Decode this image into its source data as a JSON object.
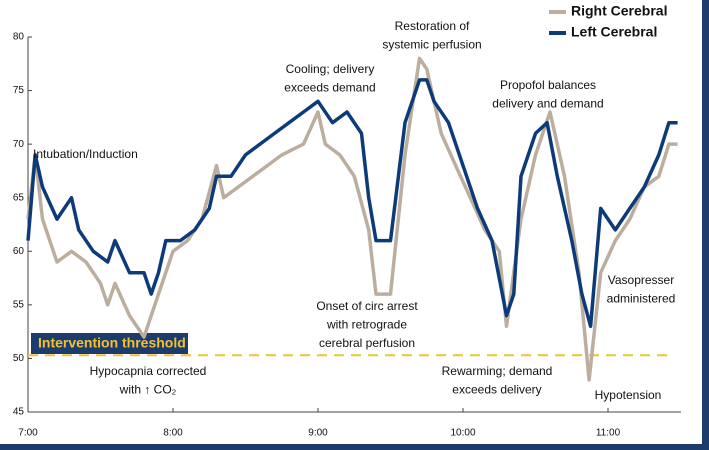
{
  "chart_data": {
    "type": "line",
    "xlim": [
      7,
      11.5
    ],
    "xticks": [
      {
        "value": 7,
        "label": "7:00"
      },
      {
        "value": 8,
        "label": "8:00"
      },
      {
        "value": 9,
        "label": "9:00"
      },
      {
        "value": 10,
        "label": "10:00"
      },
      {
        "value": 11,
        "label": "11:00"
      }
    ],
    "ylim": [
      45,
      80
    ],
    "yticks": [
      45,
      50,
      55,
      60,
      65,
      70,
      75,
      80
    ],
    "legend": "top-right",
    "threshold": {
      "label": "Intervention threshold",
      "value": 50.3,
      "color": "#f2c12e"
    },
    "series": [
      {
        "name": "Right Cerebral",
        "color": "#bcae9f",
        "x": [
          7.0,
          7.05,
          7.1,
          7.2,
          7.3,
          7.4,
          7.5,
          7.55,
          7.6,
          7.7,
          7.75,
          7.8,
          7.9,
          8.0,
          8.1,
          8.2,
          8.3,
          8.35,
          8.45,
          8.55,
          8.65,
          8.75,
          8.9,
          9.0,
          9.05,
          9.15,
          9.25,
          9.35,
          9.4,
          9.5,
          9.6,
          9.7,
          9.75,
          9.85,
          9.95,
          10.05,
          10.15,
          10.25,
          10.3,
          10.4,
          10.5,
          10.6,
          10.7,
          10.8,
          10.87,
          10.95,
          11.05,
          11.15,
          11.25,
          11.35,
          11.42,
          11.48
        ],
        "values": [
          63,
          69,
          63,
          59,
          60,
          59,
          57,
          55,
          57,
          54,
          53,
          52,
          56,
          60,
          61,
          63,
          68,
          65,
          66,
          67,
          68,
          69,
          70,
          73,
          70,
          69,
          67,
          62,
          56,
          56,
          69,
          78,
          77,
          71,
          68,
          65,
          62,
          60,
          53,
          63,
          69,
          73,
          67,
          58,
          48,
          58,
          61,
          63,
          66,
          67,
          70,
          70
        ]
      },
      {
        "name": "Left Cerebral",
        "color": "#0d3b7a",
        "x": [
          7.0,
          7.05,
          7.1,
          7.2,
          7.3,
          7.35,
          7.45,
          7.55,
          7.6,
          7.7,
          7.8,
          7.85,
          7.9,
          7.95,
          8.05,
          8.15,
          8.25,
          8.3,
          8.4,
          8.5,
          8.6,
          8.7,
          8.8,
          8.9,
          9.0,
          9.1,
          9.2,
          9.3,
          9.35,
          9.4,
          9.5,
          9.6,
          9.7,
          9.75,
          9.8,
          9.9,
          10.0,
          10.1,
          10.2,
          10.3,
          10.35,
          10.4,
          10.5,
          10.58,
          10.65,
          10.75,
          10.82,
          10.88,
          10.95,
          11.05,
          11.15,
          11.25,
          11.35,
          11.42,
          11.48
        ],
        "values": [
          61,
          69,
          66,
          63,
          65,
          62,
          60,
          59,
          61,
          58,
          58,
          56,
          58,
          61,
          61,
          62,
          64,
          67,
          67,
          69,
          70,
          71,
          72,
          73,
          74,
          72,
          73,
          71,
          65,
          61,
          61,
          72,
          76,
          76,
          74,
          72,
          68,
          64,
          61,
          54,
          56,
          67,
          71,
          72,
          67,
          61,
          56,
          53,
          64,
          62,
          64,
          66,
          69,
          72,
          72
        ]
      }
    ],
    "annotations": [
      {
        "lines": [
          "Intubation/Induction"
        ]
      },
      {
        "lines": [
          "Cooling; delivery",
          "exceeds demand"
        ]
      },
      {
        "lines": [
          "Restoration of",
          "systemic perfusion"
        ]
      },
      {
        "lines": [
          "Propofol balances",
          "delivery and demand"
        ]
      },
      {
        "lines": [
          "Onset of circ arrest",
          "with retrograde",
          "cerebral perfusion"
        ]
      },
      {
        "lines": [
          "Hypocapnia corrected",
          "with ↑ CO₂"
        ]
      },
      {
        "lines": [
          "Rewarming; demand",
          "exceeds delivery"
        ]
      },
      {
        "lines": [
          "Vasopresser",
          "administered"
        ]
      },
      {
        "lines": [
          "Hypotension"
        ]
      }
    ]
  }
}
